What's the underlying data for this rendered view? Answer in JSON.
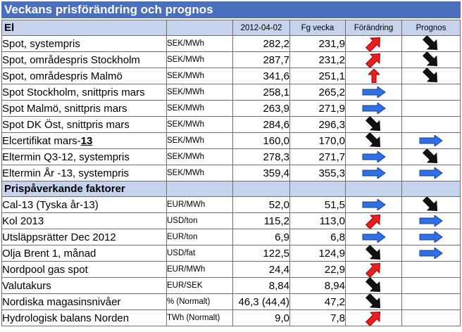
{
  "title": "Veckans prisförändring och prognos",
  "colors": {
    "title_bg": "#4a70bd",
    "section_bg": "#c5d3ec",
    "arrow_blue": "#2f6fe8",
    "arrow_red": "#ee1c1c",
    "arrow_black": "#111111"
  },
  "sections": [
    {
      "title": "El",
      "headers": [
        "2012-04-02",
        "Fg vecka",
        "Förändring",
        "Prognos"
      ],
      "rows": [
        {
          "label": "Spot, systempris",
          "unit": "SEK/MWh",
          "value": "282,2",
          "prev": "231,9",
          "change_icon": "arrow-up-right-icon",
          "forecast_icon": "arrow-down-right-icon"
        },
        {
          "label": "Spot, områdespris Stockholm",
          "unit": "SEK/MWh",
          "value": "287,7",
          "prev": "231,2",
          "change_icon": "arrow-up-right-icon",
          "forecast_icon": "arrow-down-right-icon"
        },
        {
          "label": "Spot, områdespris Malmö",
          "unit": "SEK/MWh",
          "value": "341,6",
          "prev": "251,1",
          "change_icon": "arrow-up-icon",
          "forecast_icon": "arrow-down-right-icon"
        },
        {
          "label": "Spot Stockholm, snittpris mars",
          "unit": "SEK/MWh",
          "value": "258,1",
          "prev": "265,2",
          "change_icon": "arrow-right-icon",
          "forecast_icon": ""
        },
        {
          "label": "Spot Malmö, snittpris mars",
          "unit": "SEK/MWh",
          "value": "263,9",
          "prev": "271,9",
          "change_icon": "arrow-right-icon",
          "forecast_icon": ""
        },
        {
          "label": "Spot DK Öst, snittpris mars",
          "unit": "SEK/MWh",
          "value": "284,6",
          "prev": "296,3",
          "change_icon": "arrow-down-right-icon",
          "forecast_icon": ""
        },
        {
          "label_main": "Elcertifikat mars-",
          "label_suffix": "13",
          "unit": "SEK/MWh",
          "value": "160,0",
          "prev": "170,0",
          "change_icon": "arrow-down-right-icon",
          "forecast_icon": "arrow-right-icon"
        },
        {
          "label": "Eltermin Q3-12, systempris",
          "unit": "SEK/MWh",
          "value": "278,3",
          "prev": "271,7",
          "change_icon": "arrow-right-icon",
          "forecast_icon": "arrow-down-right-icon"
        },
        {
          "label": "Eltermin År -13, systempris",
          "unit": "SEK/MWh",
          "value": "359,4",
          "prev": "355,3",
          "change_icon": "arrow-right-icon",
          "forecast_icon": "arrow-right-icon"
        }
      ]
    },
    {
      "title": "Prispåverkande faktorer",
      "rows": [
        {
          "label": "Cal-13 (Tyska år-13)",
          "unit": "EUR/MWh",
          "value": "52,0",
          "prev": "51,5",
          "change_icon": "arrow-right-icon",
          "forecast_icon": "arrow-down-right-icon"
        },
        {
          "label": "Kol 2013",
          "unit": "USD/ton",
          "value": "115,2",
          "prev": "113,0",
          "change_icon": "arrow-up-right-icon",
          "forecast_icon": "arrow-right-icon"
        },
        {
          "label": "Utsläppsrätter Dec 2012",
          "unit": "EUR/ton",
          "value": "6,9",
          "prev": "6,8",
          "change_icon": "arrow-right-icon",
          "forecast_icon": "arrow-right-icon"
        },
        {
          "label": "Olja Brent 1, månad",
          "unit": "USD/fat",
          "value": "122,5",
          "prev": "124,9",
          "change_icon": "arrow-down-right-icon",
          "forecast_icon": "arrow-right-icon"
        },
        {
          "label": "Nordpool gas spot",
          "unit": "EUR/MWh",
          "value": "24,4",
          "prev": "22,9",
          "change_icon": "arrow-up-right-icon",
          "forecast_icon": ""
        },
        {
          "label": "Valutakurs",
          "unit": "EUR/SEK",
          "value": "8,84",
          "prev": "8,94",
          "change_icon": "arrow-down-right-icon",
          "forecast_icon": ""
        },
        {
          "label": "Nordiska magasinsnivåer",
          "unit": "% (Normalt)",
          "value": "46,3 (44,4)",
          "prev": "47,2",
          "change_icon": "arrow-down-right-icon",
          "forecast_icon": ""
        },
        {
          "label": "Hydrologisk balans Norden",
          "unit": "TWh (Normalt)",
          "value": "9,0",
          "prev": "7,8",
          "change_icon": "arrow-up-right-icon",
          "forecast_icon": ""
        }
      ]
    }
  ]
}
